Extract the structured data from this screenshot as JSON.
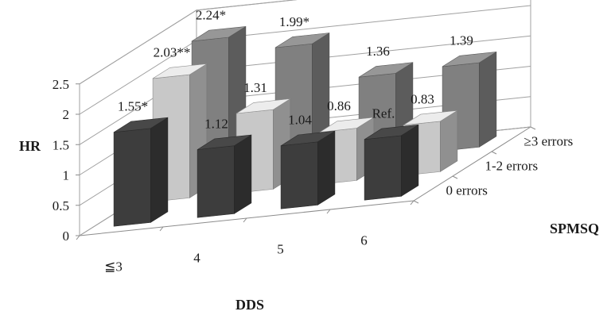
{
  "chart_data": {
    "type": "bar",
    "subtype": "3d-column",
    "title": "",
    "xlabel": "DDS",
    "ylabel": "HR",
    "zlabel": "SPMSQ",
    "categories": [
      "≦3",
      "4",
      "5",
      "6"
    ],
    "yticks": [
      "0",
      "0.5",
      "1",
      "1.5",
      "2",
      "2.5"
    ],
    "ylim": [
      0,
      2.5
    ],
    "grid": true,
    "series": [
      {
        "name": "0 errors",
        "color": "#3d3d3d",
        "values": [
          1.55,
          1.12,
          1.04,
          1.0
        ],
        "labels": [
          "1.55*",
          "1.12",
          "1.04",
          "Ref."
        ]
      },
      {
        "name": "1-2 errors",
        "color": "#c8c8c8",
        "values": [
          2.03,
          1.31,
          0.86,
          0.83
        ],
        "labels": [
          "2.03**",
          "1.31",
          "0.86",
          "0.83"
        ]
      },
      {
        "name": "≥3 errors",
        "color": "#808080",
        "values": [
          2.24,
          1.99,
          1.36,
          1.39
        ],
        "labels": [
          "2.24*",
          "1.99*",
          "1.36",
          "1.39"
        ]
      }
    ]
  }
}
